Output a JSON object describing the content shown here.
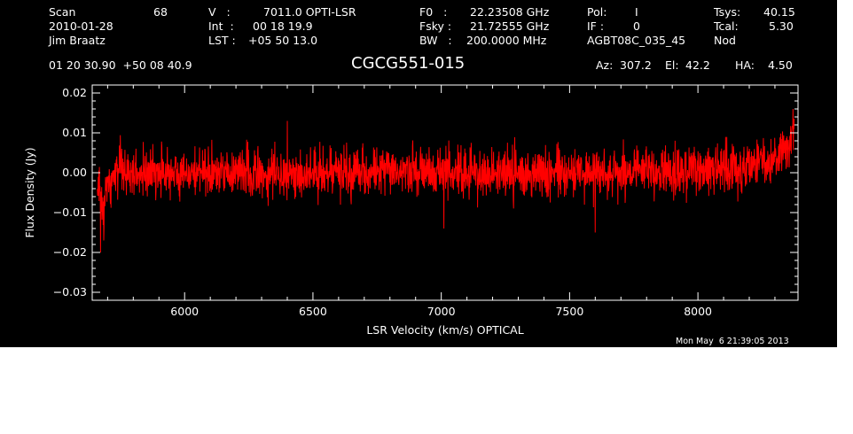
{
  "header": {
    "scan_label": "Scan",
    "scan_value": "68",
    "date": "2010-01-28",
    "observer": "Jim Braatz",
    "v_label": "V   :",
    "v_value": "7011.0 OPTI-LSR",
    "int_label": "Int  :",
    "int_value": "00 18 19.9",
    "lst_label": "LST :",
    "lst_value": "+05 50 13.0",
    "f0_label": "F0   :",
    "f0_value": "22.23508 GHz",
    "fsky_label": "Fsky :",
    "fsky_value": "21.72555 GHz",
    "bw_label": "BW   :",
    "bw_value": "200.0000 MHz",
    "pol_label": "Pol:",
    "pol_value": "I",
    "if_label": "IF :",
    "if_value": "0",
    "project": "AGBT08C_035_45",
    "tsys_label": "Tsys:",
    "tsys_value": "40.15",
    "tcal_label": "Tcal:",
    "tcal_value": "5.30",
    "mode": "Nod",
    "ra_dec": "01 20 30.90  +50 08 40.9",
    "source": "CGCG551-015",
    "az_label": "Az:",
    "az_value": "307.2",
    "el_label": "El:",
    "el_value": "42.2",
    "ha_label": "HA:",
    "ha_value": "4.50",
    "timestamp": "Mon May  6 21:39:05 2013"
  },
  "colors": {
    "background": "#000000",
    "axes": "#ffffff",
    "trace": "#ff0000",
    "page": "#ffffff"
  },
  "chart_data": {
    "type": "line",
    "title": "CGCG551-015",
    "xlabel": "LSR Velocity (km/s) OPTICAL",
    "ylabel": "Flux Density (Jy)",
    "xlim": [
      5640,
      8390
    ],
    "ylim": [
      -0.032,
      0.022
    ],
    "x_ticks": [
      6000,
      6500,
      7000,
      7500,
      8000
    ],
    "x_tick_labels": [
      "6000",
      "6500",
      "7000",
      "7500",
      "8000"
    ],
    "y_ticks": [
      -0.03,
      -0.02,
      -0.01,
      0.0,
      0.01,
      0.02
    ],
    "y_tick_labels": [
      "−0.03",
      "−0.02",
      "−0.01",
      "0.00",
      "0.01",
      "0.02"
    ],
    "grid": false,
    "series": [
      {
        "color": "#ff0000",
        "x_start": 5660,
        "x_end": 8375,
        "noise_rms_jy": 0.0042,
        "envelope": [
          {
            "x": 5660,
            "mean": -0.004,
            "rms": 0.005
          },
          {
            "x": 5680,
            "mean": -0.008,
            "rms": 0.004
          },
          {
            "x": 5700,
            "mean": -0.003,
            "rms": 0.004
          },
          {
            "x": 5730,
            "mean": 0.0,
            "rms": 0.004
          },
          {
            "x": 6300,
            "mean": 0.0,
            "rms": 0.0042
          },
          {
            "x": 7000,
            "mean": 0.0,
            "rms": 0.0042
          },
          {
            "x": 7700,
            "mean": 0.0,
            "rms": 0.0042
          },
          {
            "x": 8200,
            "mean": 0.001,
            "rms": 0.0042
          },
          {
            "x": 8300,
            "mean": 0.004,
            "rms": 0.0045
          },
          {
            "x": 8375,
            "mean": 0.01,
            "rms": 0.004
          }
        ],
        "notable_points": [
          {
            "x": 5672,
            "y": -0.02
          },
          {
            "x": 5685,
            "y": -0.017
          },
          {
            "x": 6400,
            "y": 0.013
          },
          {
            "x": 7010,
            "y": -0.014
          },
          {
            "x": 7600,
            "y": -0.015
          },
          {
            "x": 8370,
            "y": 0.016
          }
        ]
      }
    ]
  }
}
